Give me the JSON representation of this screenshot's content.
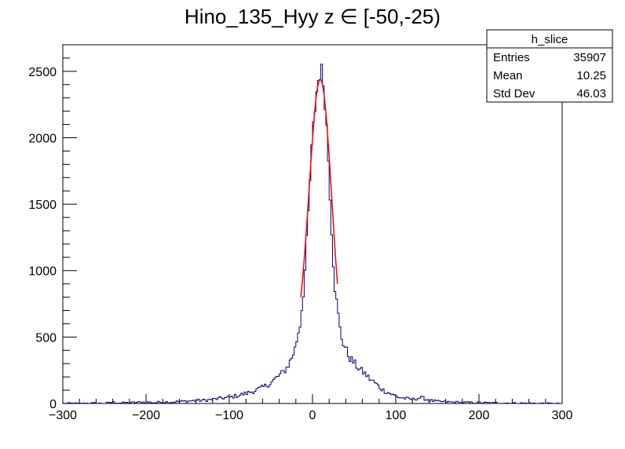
{
  "chart_data": {
    "type": "histogram",
    "title": "Hino_135_Hyy z  ∈ [-50,-25)",
    "xlabel": "",
    "ylabel": "",
    "xlim": [
      -300,
      300
    ],
    "ylim": [
      0,
      2700
    ],
    "x_ticks": [
      -300,
      -200,
      -100,
      0,
      100,
      200,
      300
    ],
    "y_ticks": [
      0,
      500,
      1000,
      1500,
      2000,
      2500
    ],
    "grid": false,
    "colors": {
      "histogram": "#000080",
      "fit": "#ff0000"
    },
    "stats_box": {
      "name": "h_slice",
      "rows": [
        {
          "label": "Entries",
          "value": "35907"
        },
        {
          "label": "Mean",
          "value": "10.25"
        },
        {
          "label": "Std Dev",
          "value": "46.03"
        }
      ]
    },
    "series": [
      {
        "type": "step",
        "bin_width": 2,
        "points": [
          [
            -300,
            0
          ],
          [
            -290,
            2
          ],
          [
            -280,
            0
          ],
          [
            -265,
            3
          ],
          [
            -250,
            0
          ],
          [
            -240,
            10
          ],
          [
            -232,
            4
          ],
          [
            -220,
            6
          ],
          [
            -210,
            8
          ],
          [
            -200,
            10
          ],
          [
            -190,
            6
          ],
          [
            -180,
            12
          ],
          [
            -170,
            10
          ],
          [
            -160,
            15
          ],
          [
            -150,
            18
          ],
          [
            -140,
            22
          ],
          [
            -130,
            24
          ],
          [
            -120,
            30
          ],
          [
            -110,
            40
          ],
          [
            -100,
            45
          ],
          [
            -90,
            60
          ],
          [
            -80,
            75
          ],
          [
            -70,
            95
          ],
          [
            -60,
            120
          ],
          [
            -50,
            155
          ],
          [
            -44,
            190
          ],
          [
            -40,
            210
          ],
          [
            -36,
            230
          ],
          [
            -32,
            260
          ],
          [
            -28,
            300
          ],
          [
            -24,
            360
          ],
          [
            -20,
            430
          ],
          [
            -18,
            520
          ],
          [
            -16,
            560
          ],
          [
            -14,
            630
          ],
          [
            -12,
            800
          ],
          [
            -10,
            880
          ],
          [
            -8,
            1120
          ],
          [
            -6,
            1300
          ],
          [
            -4,
            1550
          ],
          [
            -2,
            1800
          ],
          [
            0,
            2000
          ],
          [
            2,
            2150
          ],
          [
            4,
            2300
          ],
          [
            6,
            2400
          ],
          [
            8,
            2470
          ],
          [
            10,
            2530
          ],
          [
            12,
            2450
          ],
          [
            14,
            2380
          ],
          [
            16,
            2200
          ],
          [
            18,
            1960
          ],
          [
            20,
            1720
          ],
          [
            22,
            1450
          ],
          [
            24,
            1180
          ],
          [
            26,
            960
          ],
          [
            28,
            800
          ],
          [
            30,
            720
          ],
          [
            32,
            600
          ],
          [
            34,
            520
          ],
          [
            36,
            470
          ],
          [
            38,
            440
          ],
          [
            40,
            410
          ],
          [
            44,
            350
          ],
          [
            48,
            320
          ],
          [
            52,
            290
          ],
          [
            56,
            260
          ],
          [
            60,
            240
          ],
          [
            64,
            220
          ],
          [
            68,
            190
          ],
          [
            72,
            170
          ],
          [
            76,
            150
          ],
          [
            80,
            125
          ],
          [
            85,
            100
          ],
          [
            90,
            85
          ],
          [
            95,
            70
          ],
          [
            100,
            55
          ],
          [
            105,
            45
          ],
          [
            110,
            40
          ],
          [
            120,
            30
          ],
          [
            130,
            45
          ],
          [
            140,
            25
          ],
          [
            150,
            15
          ],
          [
            160,
            12
          ],
          [
            170,
            10
          ],
          [
            180,
            8
          ],
          [
            190,
            7
          ],
          [
            200,
            6
          ],
          [
            210,
            5
          ],
          [
            220,
            4
          ],
          [
            240,
            3
          ],
          [
            260,
            2
          ],
          [
            280,
            1
          ],
          [
            298,
            0
          ]
        ]
      },
      {
        "type": "fit",
        "name": "",
        "points": [
          [
            -14,
            800
          ],
          [
            -12,
            930
          ],
          [
            -10,
            1080
          ],
          [
            -8,
            1250
          ],
          [
            -6,
            1430
          ],
          [
            -4,
            1620
          ],
          [
            -2,
            1810
          ],
          [
            0,
            1990
          ],
          [
            2,
            2150
          ],
          [
            4,
            2290
          ],
          [
            6,
            2380
          ],
          [
            8,
            2430
          ],
          [
            10,
            2440
          ],
          [
            12,
            2400
          ],
          [
            14,
            2320
          ],
          [
            16,
            2200
          ],
          [
            18,
            2040
          ],
          [
            20,
            1860
          ],
          [
            22,
            1660
          ],
          [
            24,
            1460
          ],
          [
            26,
            1260
          ],
          [
            28,
            1070
          ],
          [
            30,
            900
          ]
        ]
      }
    ]
  }
}
